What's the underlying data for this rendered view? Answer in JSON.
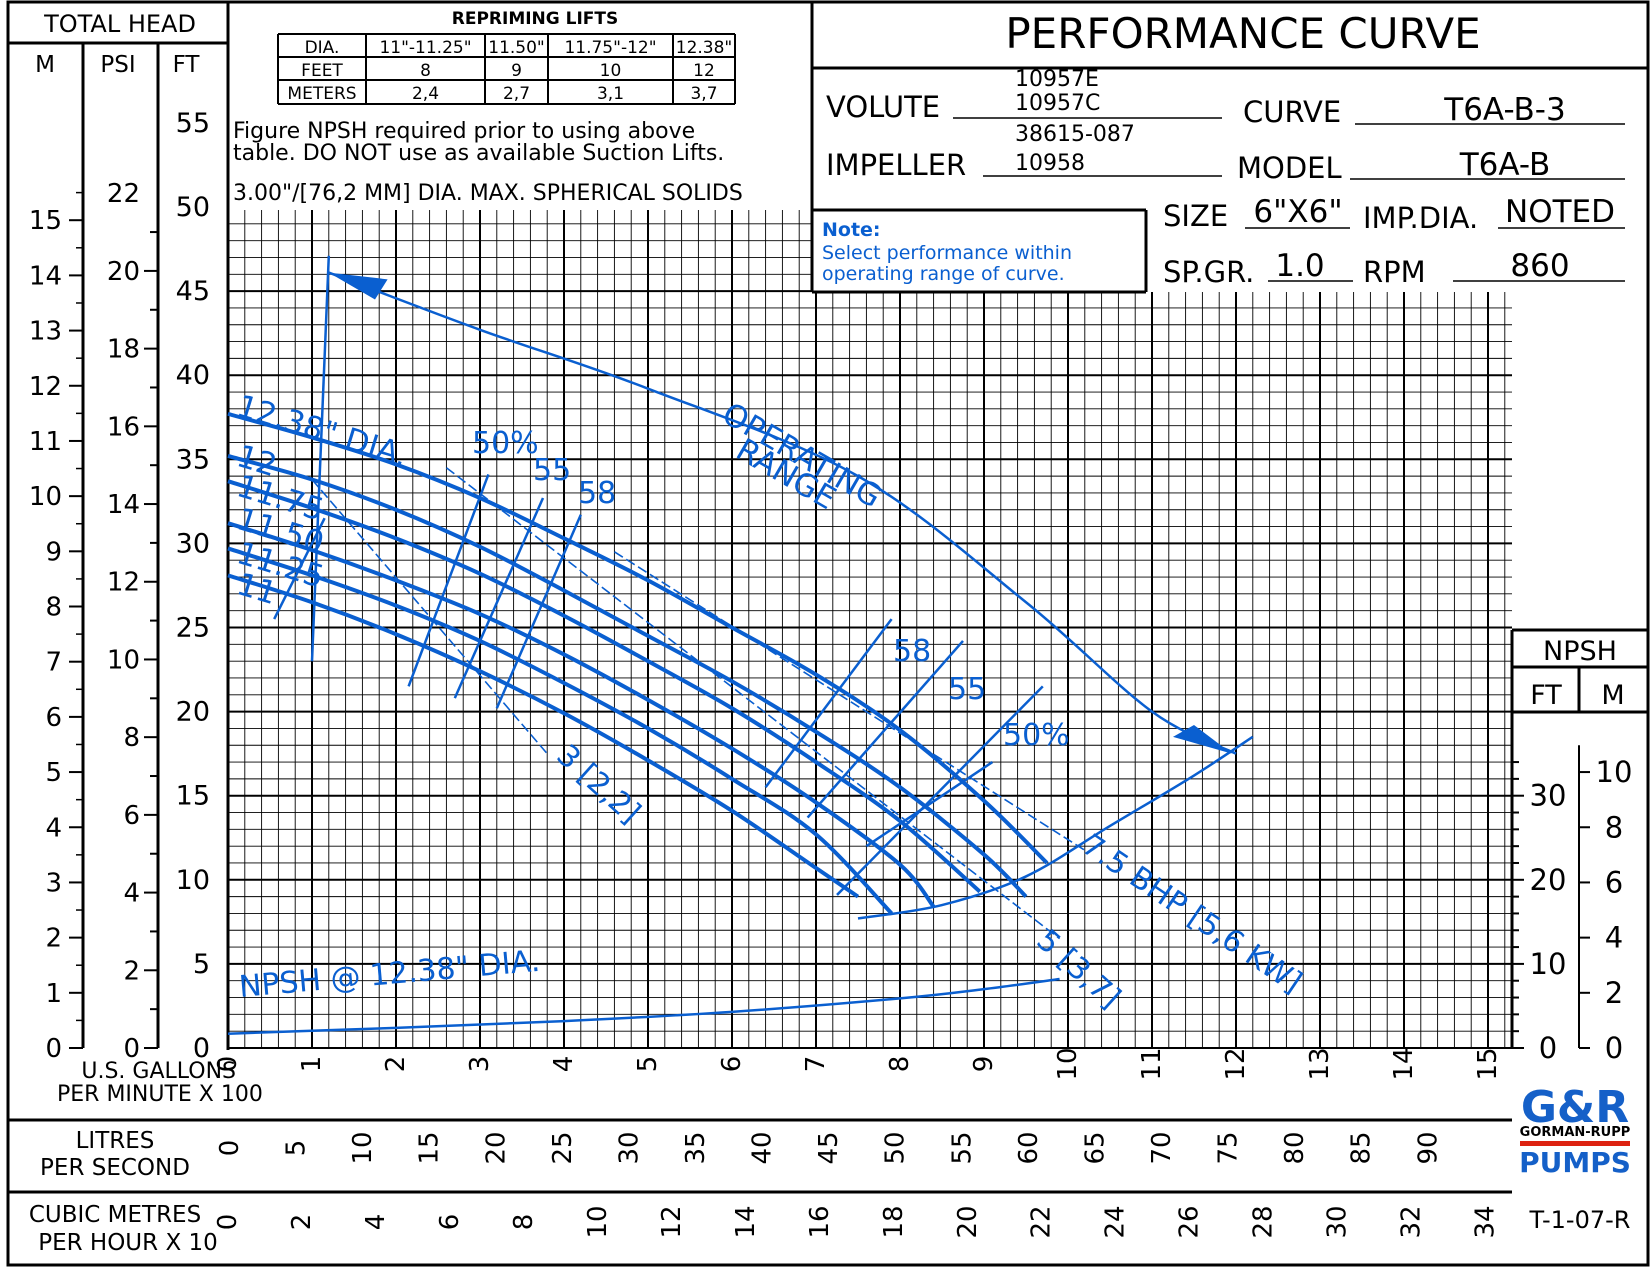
{
  "header": {
    "title": "PERFORMANCE CURVE",
    "volute_label": "VOLUTE",
    "volute_values": [
      "10957E",
      "10957C",
      "38615-087"
    ],
    "impeller_label": "IMPELLER",
    "impeller_value": "10958",
    "curve_label": "CURVE",
    "curve_value": "T6A-B-3",
    "model_label": "MODEL",
    "model_value": "T6A-B",
    "size_label": "SIZE",
    "size_value": "6\"X6\"",
    "impdia_label": "IMP.DIA.",
    "impdia_value": "NOTED",
    "spgr_label": "SP.GR.",
    "spgr_value": "1.0",
    "rpm_label": "RPM",
    "rpm_value": "860"
  },
  "repriming": {
    "title": "REPRIMING LIFTS",
    "rows": [
      [
        "DIA.",
        "11\"-11.25\"",
        "11.50\"",
        "11.75\"-12\"",
        "12.38\""
      ],
      [
        "FEET",
        "8",
        "9",
        "10",
        "12"
      ],
      [
        "METERS",
        "2,4",
        "2,7",
        "3,1",
        "3,7"
      ]
    ],
    "note1": "Figure NPSH required prior to using above",
    "note2": "table. DO NOT use as available Suction Lifts.",
    "solids": "3.00\"/[76,2 MM] DIA. MAX. SPHERICAL SOLIDS"
  },
  "note": {
    "title": "Note:",
    "line1": "Select performance within",
    "line2": "operating range of curve."
  },
  "axes": {
    "total_head": "TOTAL HEAD",
    "m": "M",
    "psi": "PSI",
    "ft": "FT",
    "gpm_label1": "U.S. GALLONS",
    "gpm_label2": "PER MINUTE X 100",
    "lps_label1": "LITRES",
    "lps_label2": "PER SECOND",
    "cmh_label1": "CUBIC METRES",
    "cmh_label2": "PER HOUR X 10",
    "npsh": "NPSH",
    "npsh_ft": "FT",
    "npsh_m": "M"
  },
  "footer": {
    "logo_top": "G&R",
    "logo_mid": "GORMAN-RUPP",
    "logo_bot": "PUMPS",
    "code": "T-1-07-R"
  },
  "colors": {
    "curve": "#0a5fd0",
    "grid": "#000000",
    "logo": "#1560c8"
  },
  "chart_data": {
    "type": "line",
    "x_unit": "U.S. gallons per minute x 100",
    "y_unit": "total head ft",
    "xlim": [
      0,
      15
    ],
    "ylim": [
      0,
      50
    ],
    "x_ticks": [
      "0",
      "1",
      "2",
      "3",
      "4",
      "5",
      "6",
      "7",
      "8",
      "9",
      "10",
      "11",
      "12",
      "13",
      "14",
      "15"
    ],
    "y_ticks_ft": [
      "0",
      "5",
      "10",
      "15",
      "20",
      "25",
      "30",
      "35",
      "40",
      "45",
      "50",
      "55"
    ],
    "y_ticks_m": [
      "0",
      "1",
      "2",
      "3",
      "4",
      "5",
      "6",
      "7",
      "8",
      "9",
      "10",
      "11",
      "12",
      "13",
      "14",
      "15"
    ],
    "y_ticks_psi": [
      "0",
      "2",
      "4",
      "6",
      "8",
      "10",
      "12",
      "14",
      "16",
      "18",
      "20",
      "22"
    ],
    "lps_ticks": [
      "0",
      "5",
      "10",
      "15",
      "20",
      "25",
      "30",
      "35",
      "40",
      "45",
      "50",
      "55",
      "60",
      "65",
      "70",
      "75",
      "80",
      "85",
      "90"
    ],
    "cmh_ticks": [
      "0",
      "2",
      "4",
      "6",
      "8",
      "10",
      "12",
      "14",
      "16",
      "18",
      "20",
      "22",
      "24",
      "26",
      "28",
      "30",
      "32",
      "34"
    ],
    "npsh_ft_ticks": [
      "0",
      "10",
      "20",
      "30"
    ],
    "npsh_m_ticks": [
      "0",
      "2",
      "4",
      "6",
      "8",
      "10"
    ],
    "series": [
      {
        "name": "12.38\" DIA.",
        "x": [
          0,
          1,
          2,
          3,
          4,
          5,
          6,
          7,
          8,
          9,
          9.75
        ],
        "y": [
          37.7,
          36.3,
          34.7,
          32.7,
          30.3,
          27.8,
          25,
          22.2,
          18.9,
          14.7,
          11
        ]
      },
      {
        "name": "12",
        "x": [
          0,
          1,
          2,
          3,
          4,
          5,
          6,
          7,
          8,
          9,
          9.5
        ],
        "y": [
          35.2,
          33.8,
          32,
          29.8,
          27.2,
          24.5,
          21.8,
          18.8,
          15.5,
          11.5,
          9
        ]
      },
      {
        "name": "11.75",
        "x": [
          0,
          1,
          2,
          3,
          4,
          5,
          6,
          7,
          8,
          8.95
        ],
        "y": [
          33.7,
          32.1,
          30.3,
          28.2,
          25.7,
          23,
          20.2,
          17,
          13.5,
          9.3
        ]
      },
      {
        "name": "11.50",
        "x": [
          0,
          1,
          2,
          3,
          4,
          5,
          6,
          7,
          8,
          8.4
        ],
        "y": [
          31.2,
          29.6,
          27.8,
          25.8,
          23.4,
          20.7,
          17.8,
          14.6,
          10.9,
          8.4
        ]
      },
      {
        "name": "11.25",
        "x": [
          0,
          1,
          2,
          3,
          4,
          5,
          6,
          7,
          7.9
        ],
        "y": [
          29.7,
          28.1,
          26.3,
          24.2,
          21.7,
          19,
          16,
          12.7,
          8
        ]
      },
      {
        "name": "11",
        "x": [
          0,
          1,
          2,
          3,
          4,
          5,
          6,
          7,
          7.5
        ],
        "y": [
          28.1,
          26.5,
          24.6,
          22.4,
          19.9,
          17.1,
          14.1,
          10.7,
          9
        ]
      },
      {
        "name": "NPSH @ 12.38\" DIA.",
        "x": [
          0,
          2,
          4,
          6,
          8,
          9,
          9.9
        ],
        "y_npsh_ft": [
          1.7,
          2.4,
          3.2,
          4.3,
          5.9,
          7.0,
          8.2
        ]
      }
    ],
    "efficiency_labels": [
      "50%",
      "55",
      "58",
      "58",
      "55",
      "50%"
    ],
    "bhp_labels": [
      "3 [2,2]",
      "5 [3,7]",
      "7.5 BHP [5,6 KW]"
    ],
    "operating_range_label": [
      "OPERATING",
      "RANGE"
    ]
  }
}
